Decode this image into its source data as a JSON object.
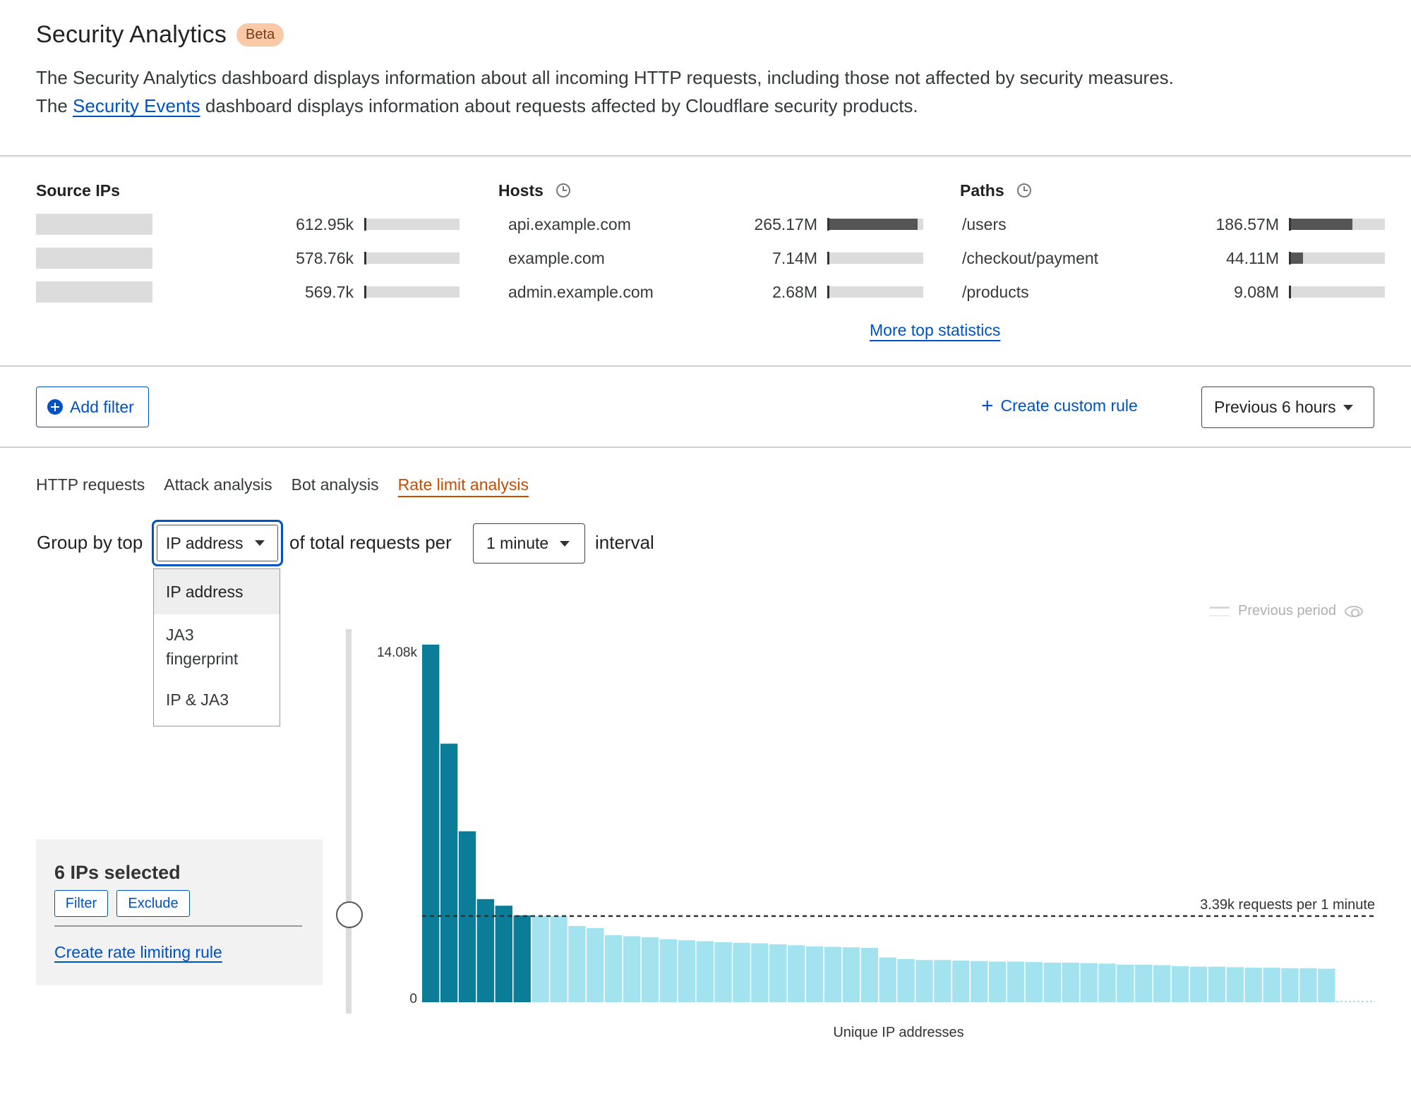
{
  "header": {
    "title": "Security Analytics",
    "badge": "Beta",
    "desc_part1": "The Security Analytics dashboard displays information about all incoming HTTP requests, including those not affected by security measures. The ",
    "desc_link": "Security Events",
    "desc_part2": " dashboard displays information about requests affected by Cloudflare security products."
  },
  "top_stats": {
    "source_ips": {
      "title": "Source IPs",
      "rows": [
        {
          "value": "612.95k",
          "fraction": 0.0
        },
        {
          "value": "578.76k",
          "fraction": 0.0
        },
        {
          "value": "569.7k",
          "fraction": 0.0
        }
      ]
    },
    "hosts": {
      "title": "Hosts",
      "rows": [
        {
          "label": "api.example.com",
          "value": "265.17M",
          "fraction": 0.94
        },
        {
          "label": "example.com",
          "value": "7.14M",
          "fraction": 0.0
        },
        {
          "label": "admin.example.com",
          "value": "2.68M",
          "fraction": 0.0
        }
      ]
    },
    "paths": {
      "title": "Paths",
      "rows": [
        {
          "label": "/users",
          "value": "186.57M",
          "fraction": 0.66
        },
        {
          "label": "/checkout/payment",
          "value": "44.11M",
          "fraction": 0.15
        },
        {
          "label": "/products",
          "value": "9.08M",
          "fraction": 0.0
        }
      ]
    },
    "more_link": "More top statistics"
  },
  "filter_bar": {
    "add_filter": "Add filter",
    "create_rule": "Create custom rule",
    "period": "Previous 6 hours"
  },
  "tabs": [
    "HTTP requests",
    "Attack analysis",
    "Bot analysis",
    "Rate limit analysis"
  ],
  "active_tab": 3,
  "group_by": {
    "text1": "Group by top",
    "selected": "IP address",
    "text2": "of total requests per",
    "interval": "1 minute",
    "text3": "interval",
    "options": [
      "IP address",
      "JA3 fingerprint",
      "IP & JA3"
    ]
  },
  "chart_meta": {
    "legend_prev": "Previous period"
  },
  "selection": {
    "title": "6 IPs selected",
    "filter": "Filter",
    "exclude": "Exclude",
    "create_link": "Create rate limiting rule"
  },
  "colors": {
    "selected": "#0b7d99",
    "unselected": "#a3e3ef",
    "link": "#0051c3",
    "active_tab": "#c74c00"
  },
  "chart_data": {
    "type": "bar",
    "xlabel": "Unique IP addresses",
    "ylabel": "",
    "ytick_labels": [
      "0",
      "14.08k"
    ],
    "ylim": [
      0,
      14080
    ],
    "threshold": {
      "value": 3390,
      "label": "3.39k requests per 1 minute"
    },
    "selected_count": 6,
    "values": [
      14080,
      10180,
      6730,
      4060,
      3800,
      3420,
      3390,
      3390,
      3000,
      2920,
      2640,
      2600,
      2560,
      2480,
      2440,
      2400,
      2360,
      2340,
      2320,
      2280,
      2240,
      2200,
      2180,
      2160,
      2140,
      1760,
      1700,
      1660,
      1660,
      1640,
      1620,
      1600,
      1600,
      1580,
      1560,
      1560,
      1540,
      1520,
      1480,
      1480,
      1460,
      1420,
      1400,
      1400,
      1380,
      1360,
      1360,
      1340,
      1340,
      1320
    ]
  }
}
